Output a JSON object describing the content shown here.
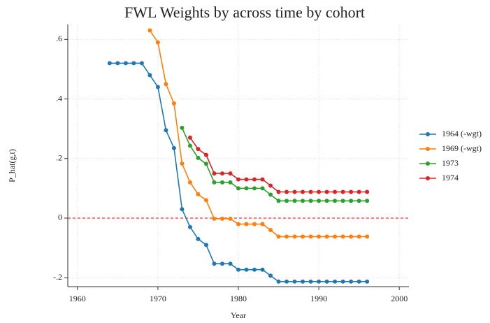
{
  "chart_data": {
    "type": "line",
    "title": "FWL Weights by across time by cohort",
    "x_label": "Year",
    "y_label": "P_hat(g,t)",
    "x": [
      1964,
      1965,
      1966,
      1967,
      1968,
      1969,
      1970,
      1971,
      1972,
      1973,
      1974,
      1975,
      1976,
      1977,
      1978,
      1979,
      1980,
      1981,
      1982,
      1983,
      1984,
      1985,
      1986,
      1987,
      1988,
      1989,
      1990,
      1991,
      1992,
      1993,
      1994,
      1995,
      1996
    ],
    "series": [
      {
        "name": "1964 (-wgt)",
        "color": "#1f77b4",
        "values": [
          0.52,
          0.52,
          0.52,
          0.52,
          0.52,
          0.48,
          0.44,
          0.295,
          0.235,
          0.03,
          -0.03,
          -0.07,
          -0.09,
          -0.153,
          -0.153,
          -0.153,
          -0.173,
          -0.173,
          -0.173,
          -0.173,
          -0.193,
          -0.213,
          -0.213,
          -0.213,
          -0.213,
          -0.213,
          -0.213,
          -0.213,
          -0.213,
          -0.213,
          -0.213,
          -0.213,
          -0.213
        ]
      },
      {
        "name": "1969 (-wgt)",
        "color": "#ff7f0e",
        "values": [
          null,
          null,
          null,
          null,
          null,
          0.63,
          0.59,
          0.45,
          0.385,
          0.183,
          0.12,
          0.08,
          0.06,
          -0.002,
          -0.002,
          -0.002,
          -0.02,
          -0.02,
          -0.02,
          -0.02,
          -0.04,
          -0.062,
          -0.062,
          -0.062,
          -0.062,
          -0.062,
          -0.062,
          -0.062,
          -0.062,
          -0.062,
          -0.062,
          -0.062,
          -0.062
        ]
      },
      {
        "name": "1973",
        "color": "#2ca02c",
        "values": [
          null,
          null,
          null,
          null,
          null,
          null,
          null,
          null,
          null,
          0.303,
          0.243,
          0.202,
          0.182,
          0.12,
          0.12,
          0.12,
          0.1,
          0.1,
          0.1,
          0.1,
          0.079,
          0.058,
          0.058,
          0.058,
          0.058,
          0.058,
          0.058,
          0.058,
          0.058,
          0.058,
          0.058,
          0.058,
          0.058
        ]
      },
      {
        "name": "1974",
        "color": "#d62728",
        "values": [
          null,
          null,
          null,
          null,
          null,
          null,
          null,
          null,
          null,
          null,
          0.27,
          0.232,
          0.212,
          0.15,
          0.15,
          0.15,
          0.13,
          0.13,
          0.13,
          0.13,
          0.109,
          0.088,
          0.088,
          0.088,
          0.088,
          0.088,
          0.088,
          0.088,
          0.088,
          0.088,
          0.088,
          0.088,
          0.088
        ]
      }
    ],
    "xlim": [
      1958.8,
      2001.2
    ],
    "xticks": [
      1960,
      1970,
      1980,
      1990,
      2000
    ],
    "ylim": [
      -0.23,
      0.65
    ],
    "yticks": [
      {
        "value": -0.2,
        "label": "-.2"
      },
      0,
      {
        "value": 0.2,
        "label": ".2"
      },
      {
        "value": 0.4,
        "label": ".4"
      },
      {
        "value": 0.6,
        "label": ".6"
      }
    ],
    "reference_line": {
      "value": 0,
      "color": "#ff3333"
    },
    "grid": true,
    "legend": "right"
  }
}
